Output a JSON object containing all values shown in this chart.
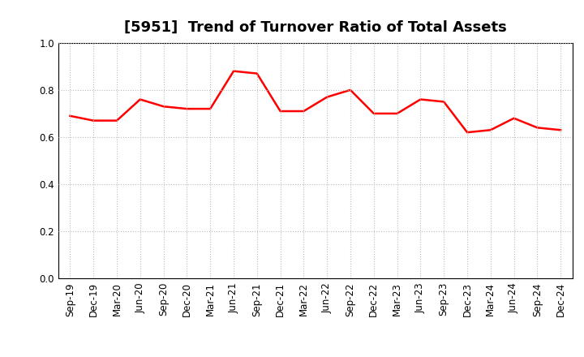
{
  "title": "[5951]  Trend of Turnover Ratio of Total Assets",
  "x_labels": [
    "Sep-19",
    "Dec-19",
    "Mar-20",
    "Jun-20",
    "Sep-20",
    "Dec-20",
    "Mar-21",
    "Jun-21",
    "Sep-21",
    "Dec-21",
    "Mar-22",
    "Jun-22",
    "Sep-22",
    "Dec-22",
    "Mar-23",
    "Jun-23",
    "Sep-23",
    "Dec-23",
    "Mar-24",
    "Jun-24",
    "Sep-24",
    "Dec-24"
  ],
  "y_values": [
    0.69,
    0.67,
    0.67,
    0.76,
    0.73,
    0.72,
    0.72,
    0.88,
    0.87,
    0.71,
    0.71,
    0.77,
    0.8,
    0.7,
    0.7,
    0.76,
    0.75,
    0.62,
    0.63,
    0.68,
    0.64,
    0.63
  ],
  "line_color": "#FF0000",
  "line_width": 1.8,
  "ylim": [
    0.0,
    1.0
  ],
  "yticks": [
    0.0,
    0.2,
    0.4,
    0.6,
    0.8,
    1.0
  ],
  "title_fontsize": 13,
  "axis_label_fontsize": 8.5,
  "background_color": "#ffffff",
  "grid_color": "#bbbbbb",
  "grid_style": ":"
}
